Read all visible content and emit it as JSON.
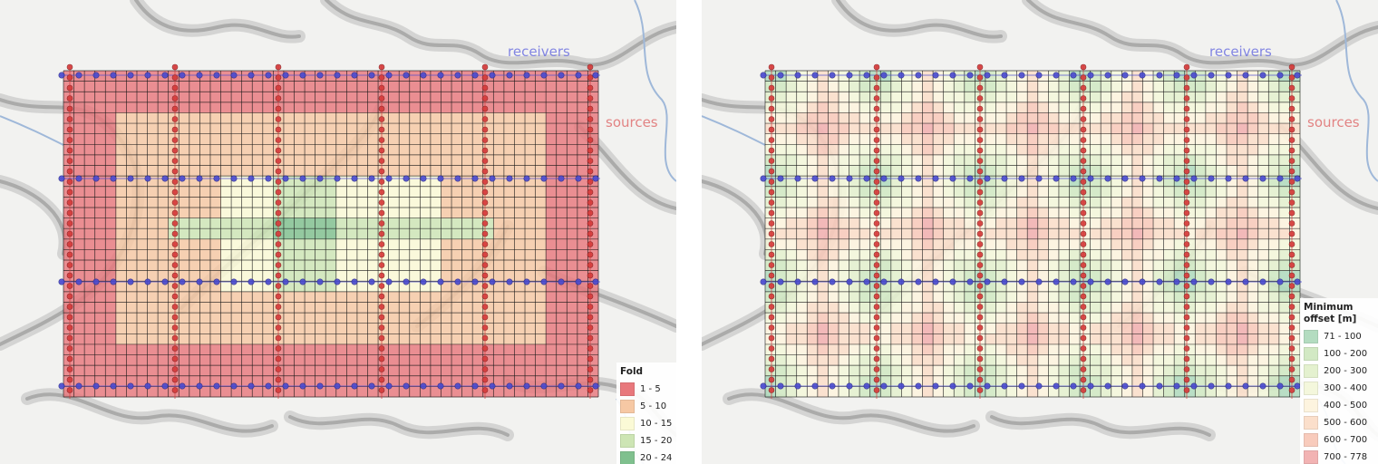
{
  "left_map": {
    "label_receivers": "receivers",
    "label_sources": "sources",
    "legend": {
      "title": "Fold",
      "items": [
        {
          "label": "1 - 5",
          "color": "#e8787c"
        },
        {
          "label": "5 - 10",
          "color": "#f6c8a4"
        },
        {
          "label": "10 - 15",
          "color": "#fbfad6"
        },
        {
          "label": "15 - 20",
          "color": "#cde5b4"
        },
        {
          "label": "20 - 24",
          "color": "#7fc08e"
        }
      ]
    }
  },
  "right_map": {
    "label_receivers": "receivers",
    "label_sources": "sources",
    "legend": {
      "title_line1": "Minimum",
      "title_line2": "offset [m]",
      "items": [
        {
          "label": "71 - 100",
          "color": "#b3dcc0"
        },
        {
          "label": "100 - 200",
          "color": "#d2e9c4"
        },
        {
          "label": "200 - 300",
          "color": "#e4f1cf"
        },
        {
          "label": "300 - 400",
          "color": "#f4f7dc"
        },
        {
          "label": "400 - 500",
          "color": "#fdf4df"
        },
        {
          "label": "500 - 600",
          "color": "#fbdfcb"
        },
        {
          "label": "600 - 700",
          "color": "#f8cbbc"
        },
        {
          "label": "700 - 778",
          "color": "#f2b3b3"
        }
      ]
    }
  },
  "colors": {
    "receiver_point": "#4a4bd0",
    "source_point": "#d63a3a",
    "grid_line": "#1a1a1a"
  }
}
